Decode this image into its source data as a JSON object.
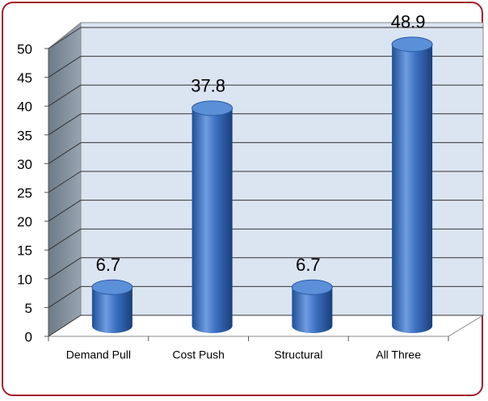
{
  "chart_data": {
    "type": "bar",
    "categories": [
      "Demand Pull",
      "Cost Push",
      "Structural",
      "All Three"
    ],
    "values": [
      6.7,
      37.8,
      6.7,
      48.9
    ],
    "color": "#3a6fc0",
    "ylim": [
      0,
      50
    ],
    "yticks": [
      0,
      5,
      10,
      15,
      20,
      25,
      30,
      35,
      40,
      45,
      50
    ],
    "grid": true
  }
}
